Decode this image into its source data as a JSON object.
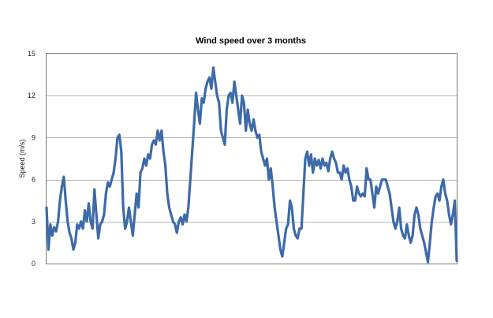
{
  "chart_data": {
    "type": "line",
    "title": "Wind speed over 3 months",
    "xlabel": "",
    "ylabel": "Speed (m/s)",
    "ylim": [
      0,
      15
    ],
    "yticks": [
      "0",
      "3",
      "6",
      "9",
      "12",
      "15"
    ],
    "grid": true,
    "legend": "none",
    "colors": {
      "series": "#3d6aa8",
      "grid": "#b8b8b8",
      "axis": "#7a7a7a"
    },
    "series": [
      {
        "values": [
          4.0,
          1.0,
          2.8,
          2.0,
          2.6,
          2.3,
          3.0,
          4.5,
          5.5,
          6.2,
          4.5,
          3.0,
          2.2,
          1.8,
          1.0,
          1.5,
          2.8,
          2.5,
          3.0,
          2.5,
          3.8,
          3.0,
          4.3,
          3.0,
          2.5,
          5.3,
          3.5,
          1.8,
          2.8,
          3.0,
          3.5,
          5.0,
          5.8,
          5.5,
          6.0,
          6.5,
          7.5,
          9.0,
          9.2,
          8.0,
          4.0,
          2.5,
          3.0,
          4.0,
          3.0,
          2.0,
          3.5,
          5.0,
          4.0,
          6.5,
          6.8,
          7.5,
          7.0,
          7.8,
          7.5,
          8.5,
          8.8,
          8.5,
          9.5,
          8.8,
          9.5,
          8.0,
          7.0,
          5.0,
          4.0,
          3.5,
          3.0,
          2.8,
          2.2,
          3.0,
          3.3,
          2.8,
          3.5,
          3.0,
          4.0,
          6.0,
          8.0,
          10.0,
          12.2,
          11.0,
          10.0,
          11.8,
          11.5,
          12.5,
          13.0,
          13.3,
          12.5,
          14.0,
          13.0,
          12.0,
          11.5,
          9.5,
          9.0,
          8.5,
          11.0,
          12.0,
          12.2,
          11.5,
          13.0,
          12.0,
          11.0,
          10.0,
          12.0,
          11.5,
          9.5,
          11.0,
          10.0,
          9.5,
          10.3,
          9.5,
          9.0,
          9.2,
          8.0,
          7.5,
          7.0,
          7.5,
          6.0,
          6.8,
          5.5,
          4.0,
          3.0,
          2.0,
          1.0,
          0.5,
          1.5,
          2.5,
          2.8,
          4.5,
          4.0,
          2.5,
          2.0,
          1.8,
          2.5,
          2.5,
          5.0,
          7.5,
          8.0,
          7.0,
          7.8,
          6.5,
          7.5,
          7.0,
          7.4,
          6.8,
          7.5,
          7.0,
          7.2,
          6.6,
          7.5,
          8.0,
          7.5,
          7.2,
          6.5,
          6.5,
          6.0,
          7.0,
          6.5,
          6.8,
          6.0,
          5.5,
          4.5,
          4.5,
          5.5,
          5.0,
          4.8,
          5.0,
          4.8,
          6.8,
          6.0,
          6.0,
          5.0,
          4.0,
          5.5,
          5.0,
          5.5,
          6.0,
          6.0,
          6.0,
          5.5,
          5.0,
          4.0,
          3.0,
          2.5,
          3.0,
          4.0,
          2.5,
          2.0,
          1.8,
          2.8,
          2.0,
          1.5,
          2.0,
          3.5,
          4.0,
          3.5,
          2.5,
          2.0,
          1.5,
          0.8,
          0.1,
          1.5,
          3.0,
          4.0,
          4.8,
          5.0,
          4.5,
          5.5,
          6.0,
          5.0,
          4.5,
          3.5,
          2.8,
          3.5,
          4.5,
          0.2
        ]
      }
    ]
  }
}
